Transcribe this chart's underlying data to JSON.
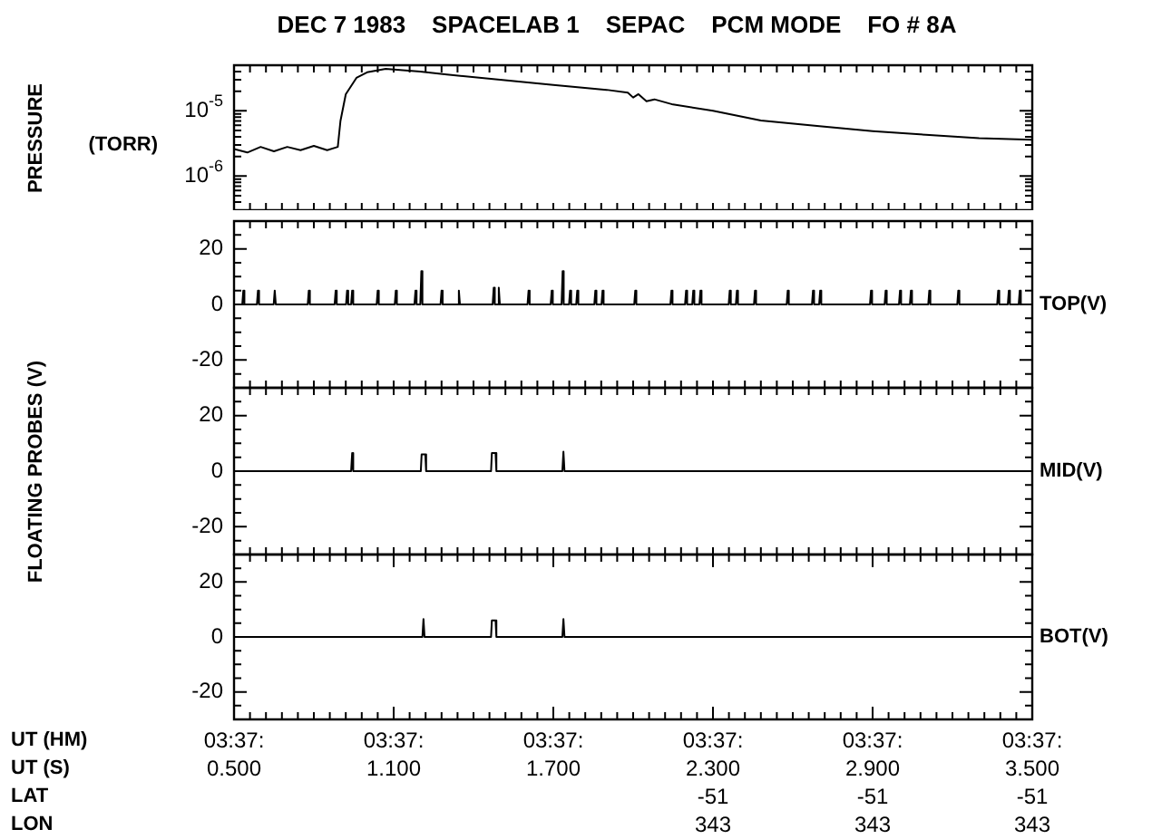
{
  "chart_data": [
    {
      "type": "line",
      "title": "DEC 7 1983    SPACELAB 1    SEPAC    PCM MODE    FO # 8A",
      "ylabel": "PRESSURE",
      "annotations": [
        "(TORR)"
      ],
      "log": true,
      "marker": "none",
      "tick_labels": "y",
      "xlim": [
        0.5,
        3.5
      ],
      "xticks": [
        0.5,
        0.56,
        0.62,
        0.68,
        0.74,
        0.8,
        0.86,
        0.92,
        0.98,
        1.04,
        1.1,
        1.16,
        1.22,
        1.28,
        1.34,
        1.4,
        1.46,
        1.52,
        1.58,
        1.64,
        1.7,
        1.76,
        1.82,
        1.88,
        1.94,
        2,
        2.06,
        2.12,
        2.18,
        2.24,
        2.3,
        2.36,
        2.42,
        2.48,
        2.54,
        2.6,
        2.66,
        2.72,
        2.78,
        2.84,
        2.9,
        2.96,
        3.02,
        3.08,
        3.14,
        3.2,
        3.26,
        3.32,
        3.38,
        3.44,
        3.5
      ],
      "ylim": [
        3e-07,
        5e-05
      ],
      "yticks": [
        {
          "value": 4e-07,
          "label": null
        },
        {
          "value": 5e-07,
          "label": null
        },
        {
          "value": 6e-07,
          "label": null
        },
        {
          "value": 7e-07,
          "label": null
        },
        {
          "value": 8e-07,
          "label": null
        },
        {
          "value": 9e-07,
          "label": null
        },
        {
          "value": 1e-06,
          "label": "10$^{-6}$"
        },
        {
          "value": 2e-06,
          "label": null
        },
        {
          "value": 3e-06,
          "label": null
        },
        {
          "value": 4e-06,
          "label": null
        },
        {
          "value": 5e-06,
          "label": null
        },
        {
          "value": 6e-06,
          "label": null
        },
        {
          "value": 7e-06,
          "label": null
        },
        {
          "value": 8e-06,
          "label": null
        },
        {
          "value": 9e-06,
          "label": null
        },
        {
          "value": 1e-05,
          "label": "10$^{-5}$"
        },
        {
          "value": 2e-05,
          "label": null
        },
        {
          "value": 3e-05,
          "label": null
        },
        {
          "value": 4e-05,
          "label": null
        },
        {
          "value": 5e-05,
          "label": null
        }
      ],
      "series": [
        {
          "color": "#000000",
          "x": [
            0.5,
            0.55,
            0.6,
            0.65,
            0.7,
            0.75,
            0.8,
            0.85,
            0.89,
            0.9,
            0.92,
            0.96,
            1.0,
            1.07,
            1.2,
            1.3,
            1.5,
            1.7,
            1.9,
            1.98,
            2.0,
            2.02,
            2.05,
            2.08,
            2.15,
            2.3,
            2.48,
            2.7,
            2.9,
            3.1,
            3.3,
            3.5
          ],
          "values": [
            2.6e-06,
            2.3e-06,
            2.8e-06,
            2.4e-06,
            2.8e-06,
            2.5e-06,
            2.9e-06,
            2.5e-06,
            2.8e-06,
            7e-06,
            1.8e-05,
            3.2e-05,
            3.9e-05,
            4.4e-05,
            4e-05,
            3.6e-05,
            3e-05,
            2.5e-05,
            2.1e-05,
            1.9e-05,
            1.6e-05,
            1.8e-05,
            1.4e-05,
            1.5e-05,
            1.25e-05,
            1e-05,
            7.1e-06,
            5.8e-06,
            4.9e-06,
            4.3e-06,
            3.8e-06,
            3.6e-06
          ]
        }
      ]
    },
    {
      "type": "line",
      "marker": "none",
      "tick_labels": "y",
      "xlim": [
        0.5,
        3.5
      ],
      "xticks": [
        0.5,
        0.56,
        0.62,
        0.68,
        0.74,
        0.8,
        0.86,
        0.92,
        0.98,
        1.04,
        1.1,
        1.16,
        1.22,
        1.28,
        1.34,
        1.4,
        1.46,
        1.52,
        1.58,
        1.64,
        1.7,
        1.76,
        1.82,
        1.88,
        1.94,
        2,
        2.06,
        2.12,
        2.18,
        2.24,
        2.3,
        2.36,
        2.42,
        2.48,
        2.54,
        2.6,
        2.66,
        2.72,
        2.78,
        2.84,
        2.9,
        2.96,
        3.02,
        3.08,
        3.14,
        3.2,
        3.26,
        3.32,
        3.38,
        3.44,
        3.5
      ],
      "ylim": [
        -30,
        30
      ],
      "yticks": [
        {
          "value": -25,
          "label": null
        },
        -20,
        {
          "value": -15,
          "label": null
        },
        {
          "value": -10,
          "label": null
        },
        {
          "value": -5,
          "label": null
        },
        0,
        {
          "value": 5,
          "label": null
        },
        {
          "value": 10,
          "label": null
        },
        {
          "value": 15,
          "label": null
        },
        20,
        {
          "value": 25,
          "label": null
        }
      ],
      "series": [
        {
          "name": "TOP(V)",
          "color": "#000000",
          "x": [
            0.5,
            0.531,
            0.535,
            0.539,
            0.586,
            0.59,
            0.594,
            0.649,
            0.653,
            0.657,
            0.777,
            0.781,
            0.785,
            0.878,
            0.882,
            0.886,
            0.921,
            0.925,
            0.929,
            0.94,
            0.944,
            0.948,
            1.036,
            1.04,
            1.044,
            1.104,
            1.108,
            1.112,
            1.178,
            1.182,
            1.186,
            1.2,
            1.204,
            1.208,
            1.276,
            1.28,
            1.284,
            1.341,
            1.345,
            1.349,
            1.472,
            1.476,
            1.48,
            1.491,
            1.495,
            1.499,
            1.603,
            1.607,
            1.611,
            1.69,
            1.694,
            1.698,
            1.731,
            1.735,
            1.739,
            1.759,
            1.763,
            1.767,
            1.786,
            1.79,
            1.794,
            1.854,
            1.858,
            1.862,
            1.881,
            1.885,
            1.889,
            2.004,
            2.008,
            2.012,
            2.14,
            2.144,
            2.148,
            2.195,
            2.199,
            2.203,
            2.222,
            2.226,
            2.23,
            2.249,
            2.253,
            2.257,
            2.359,
            2.363,
            2.367,
            2.386,
            2.39,
            2.394,
            2.454,
            2.458,
            2.462,
            2.577,
            2.581,
            2.585,
            2.672,
            2.676,
            2.68,
            2.699,
            2.703,
            2.707,
            2.89,
            2.894,
            2.898,
            2.945,
            2.949,
            2.953,
            2.999,
            3.003,
            3.007,
            3.04,
            3.044,
            3.048,
            3.109,
            3.113,
            3.117,
            3.218,
            3.222,
            3.226,
            3.368,
            3.372,
            3.376,
            3.408,
            3.412,
            3.416,
            3.449,
            3.453,
            3.457,
            3.5
          ],
          "values": [
            0,
            0,
            5,
            0,
            0,
            5,
            0,
            0,
            5,
            0,
            0,
            5,
            0,
            0,
            5,
            0,
            0,
            5,
            0,
            0,
            5,
            0,
            0,
            5,
            0,
            0,
            5,
            0,
            0,
            5,
            0,
            0,
            12,
            0,
            0,
            5,
            0,
            0,
            5,
            0,
            0,
            6,
            0,
            0,
            6,
            0,
            0,
            5,
            0,
            0,
            5,
            0,
            0,
            12,
            0,
            0,
            5,
            0,
            0,
            5,
            0,
            0,
            5,
            0,
            0,
            5,
            0,
            0,
            5,
            0,
            0,
            5,
            0,
            0,
            5,
            0,
            0,
            5,
            0,
            0,
            5,
            0,
            0,
            5,
            0,
            0,
            5,
            0,
            0,
            5,
            0,
            0,
            5,
            0,
            0,
            5,
            0,
            0,
            5,
            0,
            0,
            5,
            0,
            0,
            5,
            0,
            0,
            5,
            0,
            0,
            5,
            0,
            0,
            5,
            0,
            0,
            5,
            0,
            0,
            5,
            0,
            0,
            5,
            0,
            0,
            5,
            0,
            0
          ]
        }
      ]
    },
    {
      "type": "line",
      "ylabel": "FLOATING PROBES (V)",
      "marker": "none",
      "tick_labels": "y",
      "xlim": [
        0.5,
        3.5
      ],
      "xticks": [
        0.5,
        0.56,
        0.62,
        0.68,
        0.74,
        0.8,
        0.86,
        0.92,
        0.98,
        1.04,
        1.1,
        1.16,
        1.22,
        1.28,
        1.34,
        1.4,
        1.46,
        1.52,
        1.58,
        1.64,
        1.7,
        1.76,
        1.82,
        1.88,
        1.94,
        2,
        2.06,
        2.12,
        2.18,
        2.24,
        2.3,
        2.36,
        2.42,
        2.48,
        2.54,
        2.6,
        2.66,
        2.72,
        2.78,
        2.84,
        2.9,
        2.96,
        3.02,
        3.08,
        3.14,
        3.2,
        3.26,
        3.32,
        3.38,
        3.44,
        3.5
      ],
      "ylim": [
        -30,
        30
      ],
      "yticks": [
        {
          "value": -25,
          "label": null
        },
        -20,
        {
          "value": -15,
          "label": null
        },
        {
          "value": -10,
          "label": null
        },
        {
          "value": -5,
          "label": null
        },
        0,
        {
          "value": 5,
          "label": null
        },
        {
          "value": 10,
          "label": null
        },
        {
          "value": 15,
          "label": null
        },
        20,
        {
          "value": 25,
          "label": null
        }
      ],
      "series": [
        {
          "name": "MID(V)",
          "color": "#000000",
          "x": [
            0.5,
            0.94,
            0.944,
            0.948,
            1.202,
            1.205,
            1.219,
            1.222,
            1.466,
            1.469,
            1.483,
            1.486,
            1.734,
            1.738,
            1.742,
            3.5
          ],
          "values": [
            0,
            0,
            6.5,
            0,
            0,
            6,
            6,
            0,
            0,
            6.5,
            6.5,
            0,
            0,
            7,
            0,
            0
          ]
        }
      ]
    },
    {
      "type": "line",
      "annotations": [
        "UT (HM)",
        "UT (S)",
        "LAT",
        "LON",
        "03:37:",
        "03:37:",
        "03:37:",
        "03:37:",
        "03:37:",
        "03:37:",
        "-51",
        "-51",
        "-51",
        "343",
        "343",
        "343"
      ],
      "marker": "none",
      "xlim": [
        0.5,
        3.5
      ],
      "xticks": [
        {
          "value": 0.5,
          "label": "0.500"
        },
        {
          "value": 0.56,
          "label": null
        },
        {
          "value": 0.62,
          "label": null
        },
        {
          "value": 0.68,
          "label": null
        },
        {
          "value": 0.74,
          "label": null
        },
        {
          "value": 0.8,
          "label": null
        },
        {
          "value": 0.86,
          "label": null
        },
        {
          "value": 0.92,
          "label": null
        },
        {
          "value": 0.98,
          "label": null
        },
        {
          "value": 1.04,
          "label": null
        },
        {
          "value": 1.1,
          "label": "1.100"
        },
        {
          "value": 1.16,
          "label": null
        },
        {
          "value": 1.22,
          "label": null
        },
        {
          "value": 1.28,
          "label": null
        },
        {
          "value": 1.34,
          "label": null
        },
        {
          "value": 1.4,
          "label": null
        },
        {
          "value": 1.46,
          "label": null
        },
        {
          "value": 1.52,
          "label": null
        },
        {
          "value": 1.58,
          "label": null
        },
        {
          "value": 1.64,
          "label": null
        },
        {
          "value": 1.7,
          "label": "1.700"
        },
        {
          "value": 1.76,
          "label": null
        },
        {
          "value": 1.82,
          "label": null
        },
        {
          "value": 1.88,
          "label": null
        },
        {
          "value": 1.94,
          "label": null
        },
        {
          "value": 2,
          "label": null
        },
        {
          "value": 2.06,
          "label": null
        },
        {
          "value": 2.12,
          "label": null
        },
        {
          "value": 2.18,
          "label": null
        },
        {
          "value": 2.24,
          "label": null
        },
        {
          "value": 2.3,
          "label": "2.300"
        },
        {
          "value": 2.36,
          "label": null
        },
        {
          "value": 2.42,
          "label": null
        },
        {
          "value": 2.48,
          "label": null
        },
        {
          "value": 2.54,
          "label": null
        },
        {
          "value": 2.6,
          "label": null
        },
        {
          "value": 2.66,
          "label": null
        },
        {
          "value": 2.72,
          "label": null
        },
        {
          "value": 2.78,
          "label": null
        },
        {
          "value": 2.84,
          "label": null
        },
        {
          "value": 2.9,
          "label": "2.900"
        },
        {
          "value": 2.96,
          "label": null
        },
        {
          "value": 3.02,
          "label": null
        },
        {
          "value": 3.08,
          "label": null
        },
        {
          "value": 3.14,
          "label": null
        },
        {
          "value": 3.2,
          "label": null
        },
        {
          "value": 3.26,
          "label": null
        },
        {
          "value": 3.32,
          "label": null
        },
        {
          "value": 3.38,
          "label": null
        },
        {
          "value": 3.44,
          "label": null
        },
        {
          "value": 3.5,
          "label": "3.500"
        }
      ],
      "ylim": [
        -30,
        30
      ],
      "yticks": [
        {
          "value": -25,
          "label": null
        },
        -20,
        {
          "value": -15,
          "label": null
        },
        {
          "value": -10,
          "label": null
        },
        {
          "value": -5,
          "label": null
        },
        0,
        {
          "value": 5,
          "label": null
        },
        {
          "value": 10,
          "label": null
        },
        {
          "value": 15,
          "label": null
        },
        20,
        {
          "value": 25,
          "label": null
        }
      ],
      "series": [
        {
          "name": "BOT(V)",
          "color": "#000000",
          "x": [
            0.5,
            1.208,
            1.212,
            1.216,
            1.466,
            1.469,
            1.483,
            1.486,
            1.734,
            1.738,
            1.742,
            3.5
          ],
          "values": [
            0,
            0,
            6.5,
            0,
            0,
            6,
            6,
            0,
            0,
            6.5,
            0,
            0
          ]
        }
      ]
    }
  ]
}
